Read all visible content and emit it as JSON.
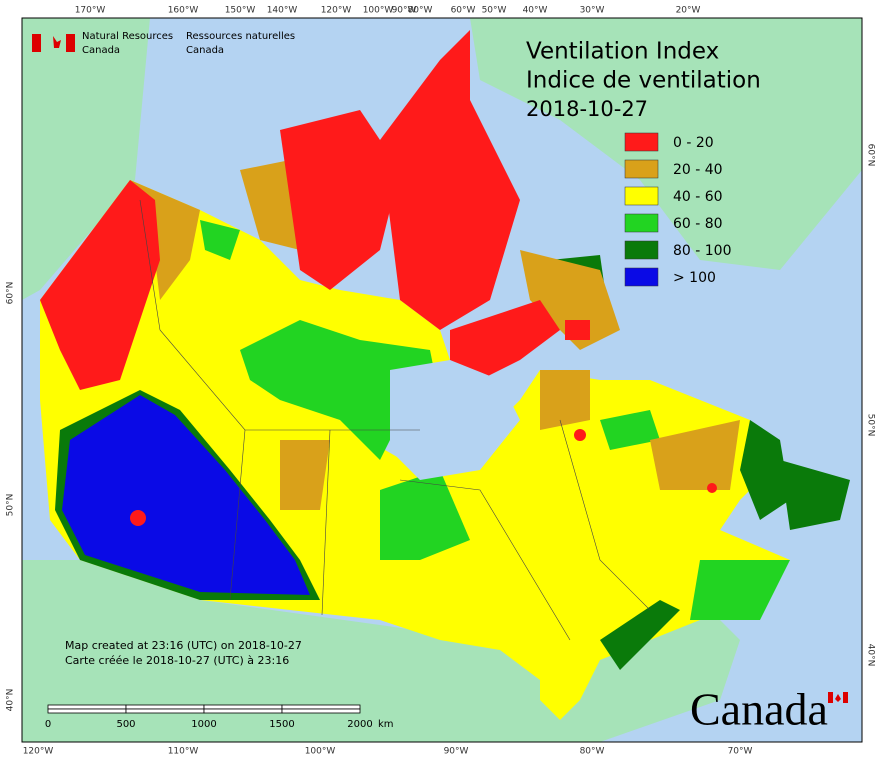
{
  "header": {
    "agency_en": "Natural Resources",
    "agency_en_2": "Canada",
    "agency_fr": "Ressources naturelles",
    "agency_fr_2": "Canada"
  },
  "title": {
    "line1": "Ventilation Index",
    "line2": "Indice de ventilation",
    "date": "2018-10-27"
  },
  "legend": [
    {
      "label": "0 - 20",
      "color": "#ff1a1a"
    },
    {
      "label": "20 - 40",
      "color": "#d9a11a"
    },
    {
      "label": "40 - 60",
      "color": "#ffff00"
    },
    {
      "label": "60 - 80",
      "color": "#22d422"
    },
    {
      "label": "80 - 100",
      "color": "#0a7a0a"
    },
    {
      "label": "> 100",
      "color": "#0a0ae6"
    }
  ],
  "top_axis": [
    "170°W",
    "160°W",
    "150°W",
    "140°W",
    "120°W",
    "100°W",
    "90°W",
    "80°W",
    "60°W",
    "50°W",
    "40°W",
    "30°W",
    "20°W"
  ],
  "bottom_axis": [
    "120°W",
    "110°W",
    "100°W",
    "90°W",
    "80°W",
    "70°W"
  ],
  "left_axis": [
    "60°N",
    "50°N",
    "40°N"
  ],
  "right_axis": [
    "60°N",
    "50°N",
    "40°N"
  ],
  "credits": [
    "Map created at 23:16 (UTC) on 2018-10-27",
    "Carte créée le 2018-10-27 (UTC) à 23:16"
  ],
  "scale_bar": {
    "labels": [
      "0",
      "500",
      "1000",
      "1500",
      "2000"
    ],
    "unit": "km"
  },
  "wordmark": "Canada"
}
